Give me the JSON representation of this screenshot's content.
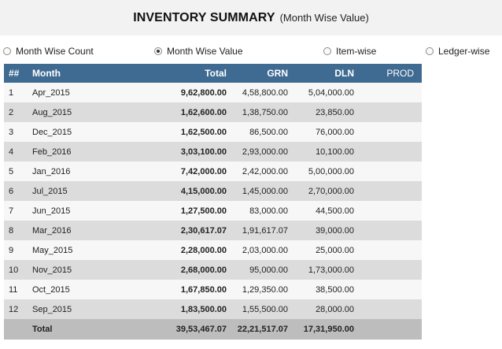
{
  "header": {
    "title": "INVENTORY SUMMARY",
    "subtitle": "(Month Wise Value)"
  },
  "view_options": [
    {
      "label": "Month Wise Count",
      "checked": false
    },
    {
      "label": "Month Wise Value",
      "checked": true
    },
    {
      "label": "Item-wise",
      "checked": false
    },
    {
      "label": "Ledger-wise",
      "checked": false
    }
  ],
  "table": {
    "columns": [
      "##",
      "Month",
      "Total",
      "GRN",
      "DLN",
      "PROD"
    ],
    "rows": [
      [
        "1",
        "Apr_2015",
        "9,62,800.00",
        "4,58,800.00",
        "5,04,000.00",
        ""
      ],
      [
        "2",
        "Aug_2015",
        "1,62,600.00",
        "1,38,750.00",
        "23,850.00",
        ""
      ],
      [
        "3",
        "Dec_2015",
        "1,62,500.00",
        "86,500.00",
        "76,000.00",
        ""
      ],
      [
        "4",
        "Feb_2016",
        "3,03,100.00",
        "2,93,000.00",
        "10,100.00",
        ""
      ],
      [
        "5",
        "Jan_2016",
        "7,42,000.00",
        "2,42,000.00",
        "5,00,000.00",
        ""
      ],
      [
        "6",
        "Jul_2015",
        "4,15,000.00",
        "1,45,000.00",
        "2,70,000.00",
        ""
      ],
      [
        "7",
        "Jun_2015",
        "1,27,500.00",
        "83,000.00",
        "44,500.00",
        ""
      ],
      [
        "8",
        "Mar_2016",
        "2,30,617.07",
        "1,91,617.07",
        "39,000.00",
        ""
      ],
      [
        "9",
        "May_2015",
        "2,28,000.00",
        "2,03,000.00",
        "25,000.00",
        ""
      ],
      [
        "10",
        "Nov_2015",
        "2,68,000.00",
        "95,000.00",
        "1,73,000.00",
        ""
      ],
      [
        "11",
        "Oct_2015",
        "1,67,850.00",
        "1,29,350.00",
        "38,500.00",
        ""
      ],
      [
        "12",
        "Sep_2015",
        "1,83,500.00",
        "1,55,500.00",
        "28,000.00",
        ""
      ]
    ],
    "totals": {
      "label": "Total",
      "total": "39,53,467.07",
      "grn": "22,21,517.07",
      "dln": "17,31,950.00",
      "prod": ""
    }
  }
}
